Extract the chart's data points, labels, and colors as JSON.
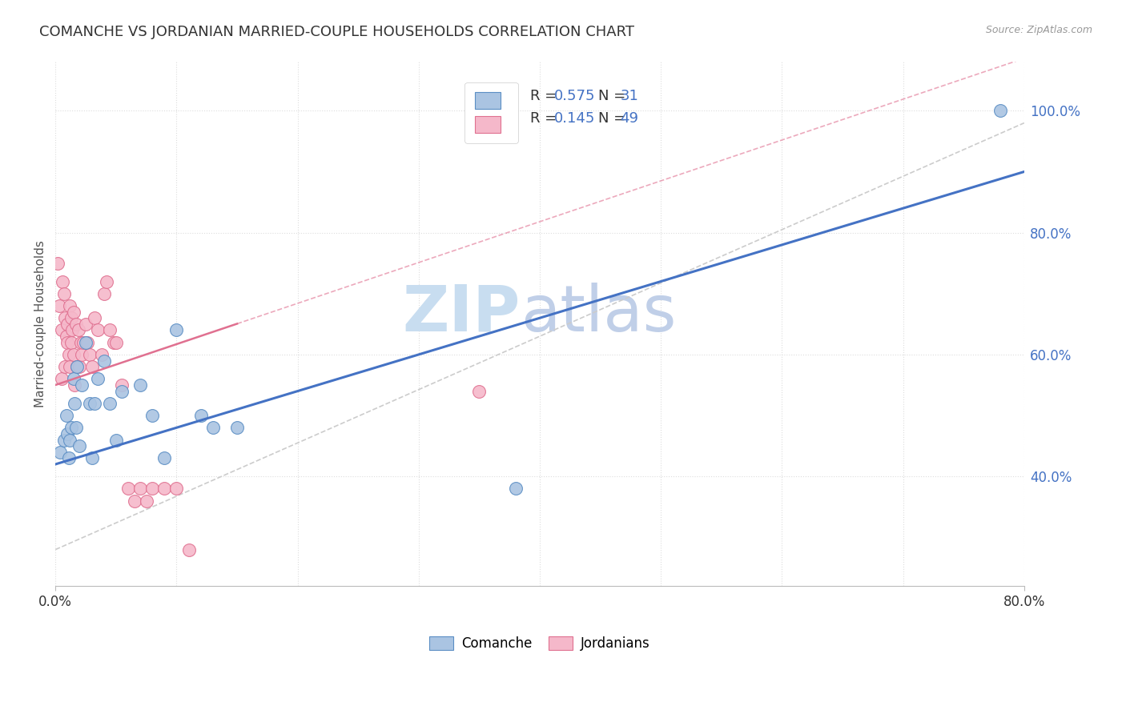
{
  "title": "COMANCHE VS JORDANIAN MARRIED-COUPLE HOUSEHOLDS CORRELATION CHART",
  "source_text": "Source: ZipAtlas.com",
  "ylabel": "Married-couple Households",
  "xlim": [
    0.0,
    0.8
  ],
  "ylim": [
    0.22,
    1.08
  ],
  "ytick_vals": [
    0.4,
    0.6,
    0.8,
    1.0
  ],
  "xtick_vals": [
    0.0,
    0.1,
    0.2,
    0.3,
    0.4,
    0.5,
    0.6,
    0.7,
    0.8
  ],
  "comanche_R": 0.575,
  "comanche_N": 31,
  "jordanian_R": 0.145,
  "jordanian_N": 49,
  "comanche_color": "#aac4e2",
  "comanche_edge_color": "#5b8ec4",
  "comanche_line_color": "#4472c4",
  "jordanian_color": "#f5b8ca",
  "jordanian_edge_color": "#e07090",
  "jordanian_line_color": "#e07090",
  "ref_line_color": "#cccccc",
  "watermark_zip_color": "#c8ddf0",
  "watermark_atlas_color": "#c0cfe8",
  "background_color": "#ffffff",
  "grid_color": "#dddddd",
  "comanche_x": [
    0.004,
    0.007,
    0.009,
    0.01,
    0.011,
    0.012,
    0.013,
    0.015,
    0.016,
    0.017,
    0.018,
    0.02,
    0.022,
    0.025,
    0.028,
    0.03,
    0.032,
    0.035,
    0.04,
    0.045,
    0.05,
    0.055,
    0.07,
    0.08,
    0.09,
    0.1,
    0.12,
    0.13,
    0.15,
    0.38,
    0.78
  ],
  "comanche_y": [
    0.44,
    0.46,
    0.5,
    0.47,
    0.43,
    0.46,
    0.48,
    0.56,
    0.52,
    0.48,
    0.58,
    0.45,
    0.55,
    0.62,
    0.52,
    0.43,
    0.52,
    0.56,
    0.59,
    0.52,
    0.46,
    0.54,
    0.55,
    0.5,
    0.43,
    0.64,
    0.5,
    0.48,
    0.48,
    0.38,
    1.0
  ],
  "jordanian_x": [
    0.002,
    0.003,
    0.005,
    0.005,
    0.006,
    0.007,
    0.008,
    0.008,
    0.009,
    0.01,
    0.01,
    0.011,
    0.012,
    0.012,
    0.013,
    0.013,
    0.014,
    0.015,
    0.015,
    0.016,
    0.017,
    0.018,
    0.019,
    0.02,
    0.021,
    0.022,
    0.023,
    0.025,
    0.026,
    0.028,
    0.03,
    0.032,
    0.035,
    0.038,
    0.04,
    0.042,
    0.045,
    0.048,
    0.05,
    0.055,
    0.06,
    0.065,
    0.07,
    0.075,
    0.08,
    0.09,
    0.1,
    0.11,
    0.35
  ],
  "jordanian_y": [
    0.75,
    0.68,
    0.56,
    0.64,
    0.72,
    0.7,
    0.66,
    0.58,
    0.63,
    0.62,
    0.65,
    0.6,
    0.68,
    0.58,
    0.62,
    0.66,
    0.64,
    0.6,
    0.67,
    0.55,
    0.65,
    0.58,
    0.64,
    0.58,
    0.62,
    0.6,
    0.62,
    0.65,
    0.62,
    0.6,
    0.58,
    0.66,
    0.64,
    0.6,
    0.7,
    0.72,
    0.64,
    0.62,
    0.62,
    0.55,
    0.38,
    0.36,
    0.38,
    0.36,
    0.38,
    0.38,
    0.38,
    0.28,
    0.54
  ],
  "title_fontsize": 13,
  "axis_label_fontsize": 11,
  "tick_fontsize": 12
}
